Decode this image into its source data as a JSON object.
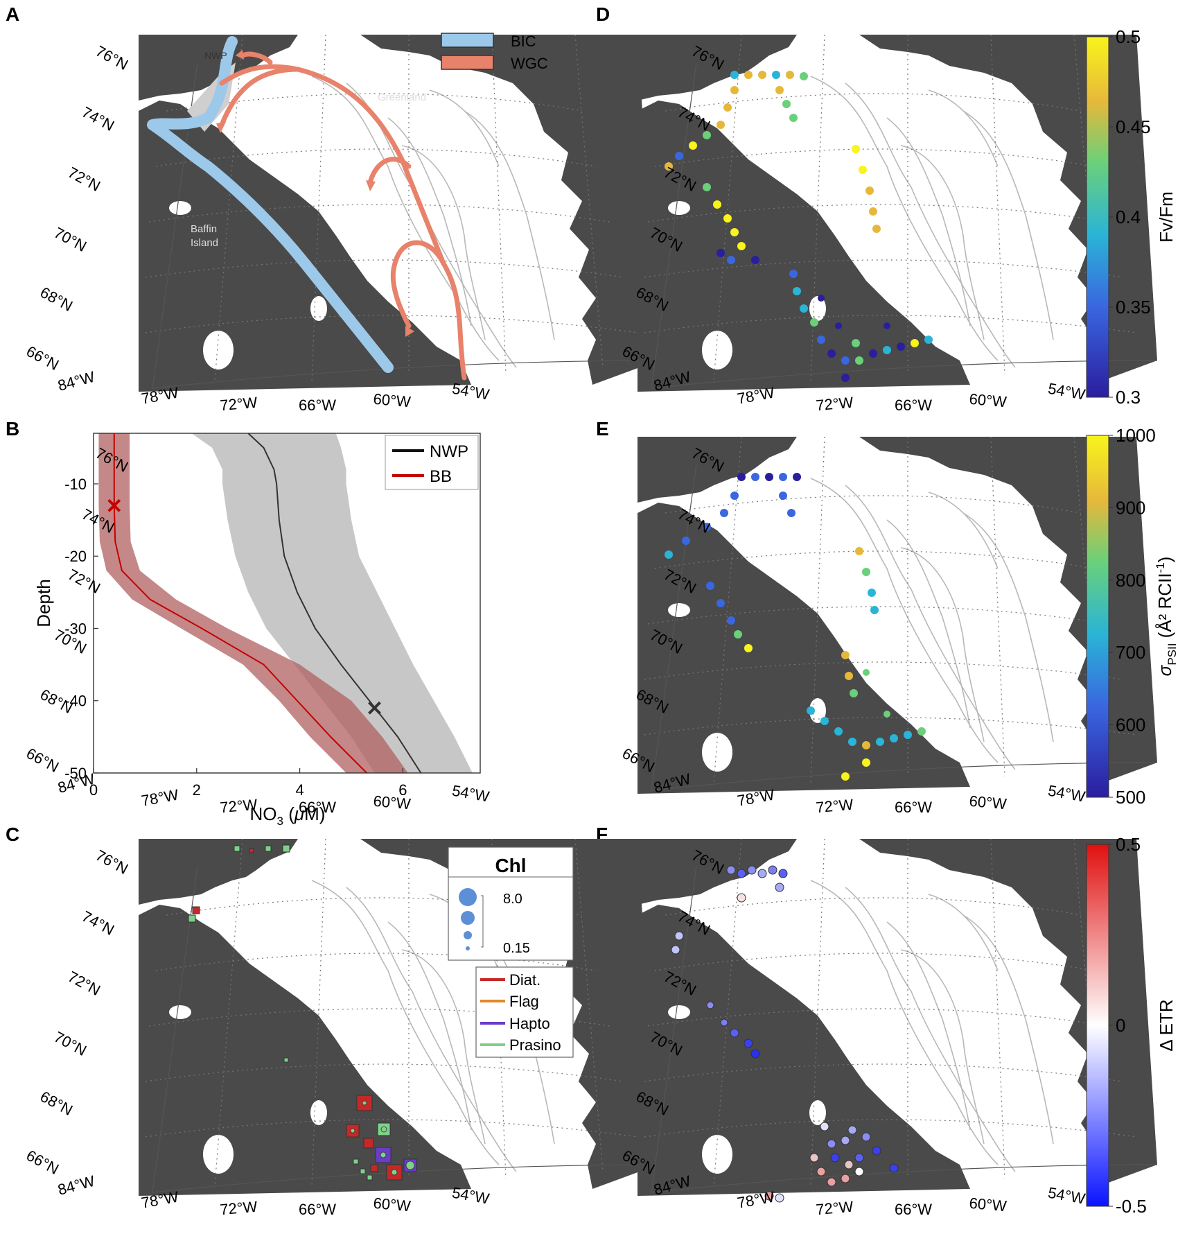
{
  "panel_labels": [
    "A",
    "B",
    "C",
    "D",
    "E",
    "F"
  ],
  "colors": {
    "land": "#4a4a4a",
    "contour": "#b8b8b8",
    "bic": "#9cc8ea",
    "wgc": "#e8826a",
    "nwp_region": "#cfcfcf",
    "bb_line": "#c40000",
    "bb_band": "#b06060",
    "nwp_line": "#333333",
    "nwp_band": "#c4c4c4",
    "diat": "#c62828",
    "flag": "#e08a2a",
    "hapto": "#6a3cc8",
    "prasino": "#7fd18a",
    "chl_fill": "#5b8fd6"
  },
  "map_ticks": {
    "lat": [
      "76°N",
      "74°N",
      "72°N",
      "70°N",
      "68°N",
      "66°N"
    ],
    "lon": [
      "84°W",
      "78°W",
      "72°W",
      "66°W",
      "60°W",
      "54°W"
    ]
  },
  "panel_a": {
    "legend": [
      {
        "label": "BIC",
        "color": "#9cc8ea"
      },
      {
        "label": "WGC",
        "color": "#e8826a"
      }
    ],
    "place_labels": [
      "NWP",
      "Greenland",
      "Baffin",
      "Island"
    ]
  },
  "panel_c": {
    "chl_title": "Chl",
    "chl_scale": [
      "8.0",
      "0.15"
    ],
    "taxa_legend": [
      {
        "label": "Diat.",
        "color": "#c62828"
      },
      {
        "label": "Flag",
        "color": "#e08a2a"
      },
      {
        "label": "Hapto",
        "color": "#6a3cc8"
      },
      {
        "label": "Prasino",
        "color": "#7fd18a"
      }
    ]
  },
  "colorbars": {
    "d": {
      "label": "Fv/Fm",
      "ticks": [
        "0.5",
        "0.45",
        "0.4",
        "0.35",
        "0.3"
      ],
      "min": 0.3,
      "max": 0.5
    },
    "e": {
      "label_main": "σ",
      "label_sub": "PSII",
      "label_unit": " (Å² RCII",
      "label_sup": "-1",
      "label_close": ")",
      "ticks": [
        "1000",
        "900",
        "800",
        "700",
        "600",
        "500"
      ],
      "min": 500,
      "max": 1000
    },
    "f": {
      "label": "Δ ETR",
      "ticks": [
        "0.5",
        "0",
        "-0.5"
      ],
      "min": -0.5,
      "max": 0.5
    }
  },
  "chart_data": [
    {
      "type": "line",
      "panel": "B",
      "xlabel": "NO3 (μM)",
      "ylabel": "Depth",
      "xlim": [
        0,
        7.5
      ],
      "ylim": [
        -50,
        -3
      ],
      "xticks": [
        "0",
        "2",
        "4",
        "6"
      ],
      "yticks": [
        "-10",
        "-20",
        "-30",
        "-40",
        "-50"
      ],
      "legend_position": "top-right",
      "series": [
        {
          "name": "NWP",
          "color": "#333333",
          "depth": [
            -3,
            -5,
            -8,
            -10,
            -15,
            -20,
            -25,
            -30,
            -35,
            -40,
            -45,
            -50
          ],
          "mean": [
            3.0,
            3.3,
            3.5,
            3.55,
            3.6,
            3.7,
            3.95,
            4.3,
            4.8,
            5.35,
            5.9,
            6.35
          ],
          "lower": [
            1.9,
            2.3,
            2.5,
            2.5,
            2.6,
            2.75,
            3.0,
            3.35,
            3.9,
            4.45,
            5.0,
            5.45
          ],
          "upper": [
            4.7,
            4.8,
            4.9,
            4.9,
            5.0,
            5.15,
            5.5,
            5.85,
            6.2,
            6.6,
            7.0,
            7.35
          ],
          "marker": {
            "x": 5.45,
            "y": -41
          }
        },
        {
          "name": "BB",
          "color": "#c40000",
          "depth": [
            -3,
            -8,
            -13,
            -18,
            -22,
            -26,
            -30,
            -35,
            -40,
            -45,
            -50
          ],
          "mean": [
            0.4,
            0.4,
            0.4,
            0.42,
            0.55,
            1.1,
            2.1,
            3.3,
            3.95,
            4.6,
            5.3
          ],
          "lower": [
            0.1,
            0.1,
            0.1,
            0.12,
            0.25,
            0.75,
            1.7,
            2.9,
            3.6,
            4.2,
            4.9
          ],
          "upper": [
            0.7,
            0.7,
            0.7,
            0.72,
            0.9,
            1.6,
            2.6,
            4.0,
            5.0,
            5.6,
            6.1
          ],
          "marker": {
            "x": 0.4,
            "y": -13
          }
        }
      ]
    }
  ]
}
